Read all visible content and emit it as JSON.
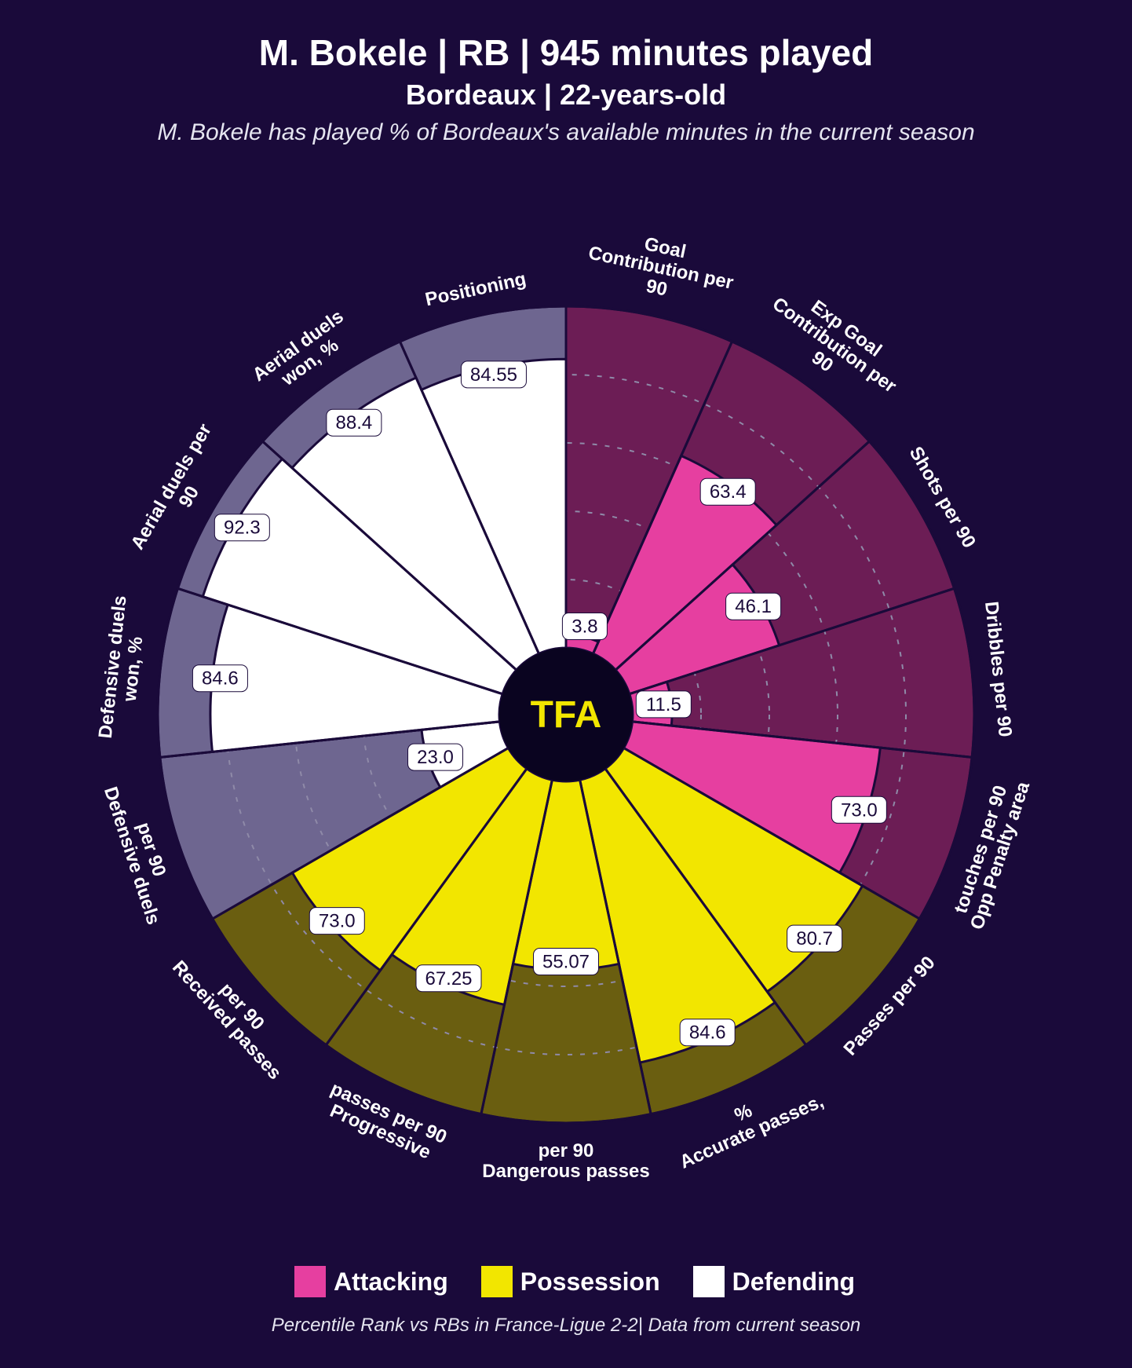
{
  "title_line1": "M. Bokele | RB | 945 minutes played",
  "title_line2": "Bordeaux | 22-years-old",
  "title_line3": "M. Bokele has played % of Bordeaux's available minutes in the current season",
  "footer": "Percentile Rank vs RBs in France-Ligue 2-2| Data from current season",
  "center_logo_text": "TFA",
  "center_logo_color": "#f2e600",
  "center_fill": "#0a0420",
  "background_color": "#1a0a3a",
  "radius_outer": 520,
  "radius_inner": 85,
  "gridline_color": "#8f8aa8",
  "gridline_dash": "6 10",
  "grid_levels": [
    0.2,
    0.4,
    0.6,
    0.8
  ],
  "legend": [
    {
      "label": "Attacking",
      "color": "#e63fa0"
    },
    {
      "label": "Possession",
      "color": "#f2e600"
    },
    {
      "label": "Defending",
      "color": "#ffffff"
    }
  ],
  "categories": {
    "Attacking": {
      "bar": "#e63fa0",
      "back": "#6c1d55",
      "label_color": "#1a0a3a"
    },
    "Possession": {
      "bar": "#f2e600",
      "back": "#6a5e10",
      "label_color": "#1a0a3a"
    },
    "Defending": {
      "bar": "#ffffff",
      "back": "#6e6690",
      "label_color": "#1a0a3a"
    }
  },
  "slice_stroke": "#1a0a3a",
  "slice_stroke_width": 3,
  "axis_label_color": "#ffffff",
  "axis_label_fontsize": 24,
  "value_label_fontsize": 24,
  "metrics": [
    {
      "name": "Goal Contribution per 90",
      "cat": "Attacking",
      "value": 3.8,
      "display": "3.8"
    },
    {
      "name": "Exp Goal Contribution per 90",
      "cat": "Attacking",
      "value": 63.4,
      "display": "63.4"
    },
    {
      "name": "Shots per 90",
      "cat": "Attacking",
      "value": 46.1,
      "display": "46.1"
    },
    {
      "name": "Dribbles per 90",
      "cat": "Attacking",
      "value": 11.5,
      "display": "11.5"
    },
    {
      "name": "Opp Penalty area touches per 90",
      "cat": "Attacking",
      "value": 73.0,
      "display": "73.0"
    },
    {
      "name": "Passes per 90",
      "cat": "Possession",
      "value": 80.7,
      "display": "80.7"
    },
    {
      "name": "Accurate passes, %",
      "cat": "Possession",
      "value": 84.6,
      "display": "84.6"
    },
    {
      "name": "Dangerous passes per 90",
      "cat": "Possession",
      "value": 55.07,
      "display": "55.07"
    },
    {
      "name": "Progressive passes per 90",
      "cat": "Possession",
      "value": 67.25,
      "display": "67.25"
    },
    {
      "name": "Received passes per 90",
      "cat": "Possession",
      "value": 73.0,
      "display": "73.0"
    },
    {
      "name": "Defensive duels per 90",
      "cat": "Defending",
      "value": 23.0,
      "display": "23.0"
    },
    {
      "name": "Defensive duels won, %",
      "cat": "Defending",
      "value": 84.6,
      "display": "84.6"
    },
    {
      "name": "Aerial duels per 90",
      "cat": "Defending",
      "value": 92.3,
      "display": "92.3"
    },
    {
      "name": "Aerial duels won, %",
      "cat": "Defending",
      "value": 88.4,
      "display": "88.4"
    },
    {
      "name": "Positioning",
      "cat": "Defending",
      "value": 84.55,
      "display": "84.55"
    }
  ]
}
